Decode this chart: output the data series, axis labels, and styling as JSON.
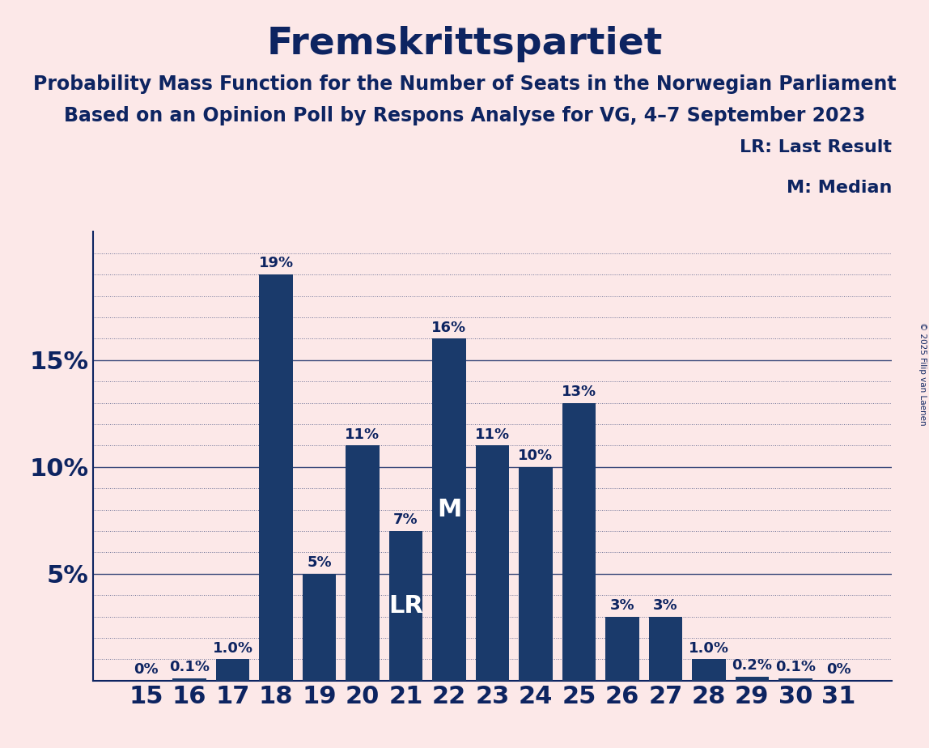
{
  "title": "Fremskrittspartiet",
  "subtitle1": "Probability Mass Function for the Number of Seats in the Norwegian Parliament",
  "subtitle2": "Based on an Opinion Poll by Respons Analyse for VG, 4–7 September 2023",
  "copyright": "© 2025 Filip van Laenen",
  "seats": [
    15,
    16,
    17,
    18,
    19,
    20,
    21,
    22,
    23,
    24,
    25,
    26,
    27,
    28,
    29,
    30,
    31
  ],
  "probabilities": [
    0.0,
    0.1,
    1.0,
    19.0,
    5.0,
    11.0,
    7.0,
    16.0,
    11.0,
    10.0,
    13.0,
    3.0,
    3.0,
    1.0,
    0.2,
    0.1,
    0.0
  ],
  "labels": [
    "0%",
    "0.1%",
    "1.0%",
    "19%",
    "5%",
    "11%",
    "7%",
    "16%",
    "11%",
    "10%",
    "13%",
    "3%",
    "3%",
    "1.0%",
    "0.2%",
    "0.1%",
    "0%"
  ],
  "bar_color": "#1a3a6b",
  "background_color": "#fce8e8",
  "text_color": "#0d2461",
  "lr_seat": 21,
  "median_seat": 22,
  "ylim": [
    0,
    21
  ],
  "yticks": [
    0,
    5,
    10,
    15,
    20
  ],
  "legend_lr": "LR: Last Result",
  "legend_m": "M: Median",
  "title_fontsize": 34,
  "subtitle_fontsize": 17,
  "axis_label_fontsize": 22,
  "bar_label_fontsize": 13,
  "legend_fontsize": 16,
  "lr_label_fontsize": 22,
  "m_label_fontsize": 22
}
